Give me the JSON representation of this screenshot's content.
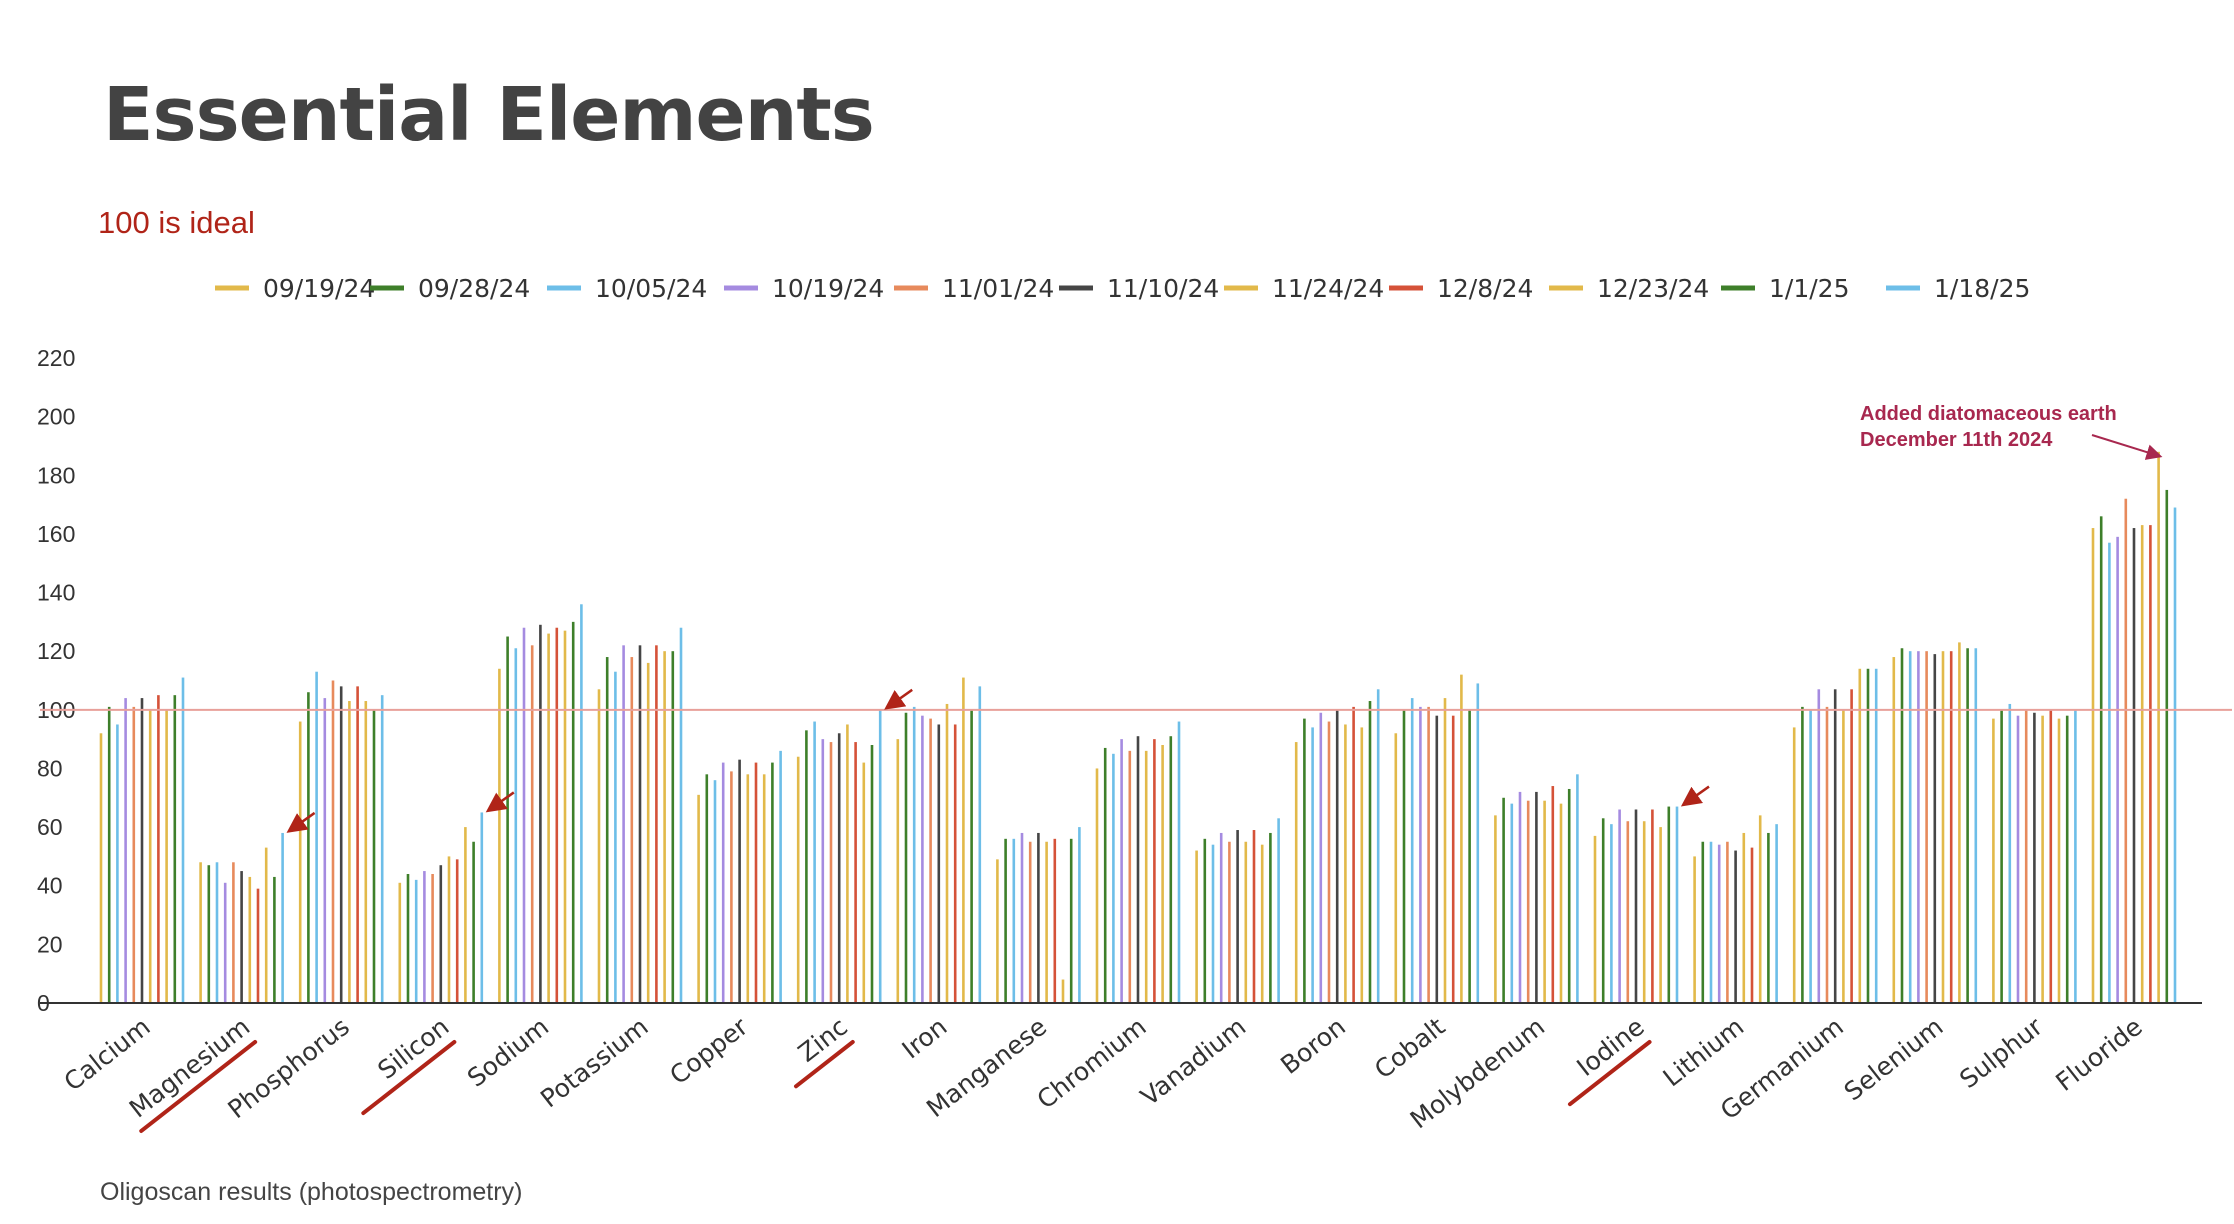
{
  "slide": {
    "title": "Essential Elements",
    "subtitle": "100 is ideal",
    "footnote": "Oligoscan results (photospectrometry)"
  },
  "chart_data": {
    "type": "bar",
    "title": "",
    "xlabel": "",
    "ylabel": "",
    "ylim": [
      0,
      220
    ],
    "yticks": [
      0,
      20,
      40,
      60,
      80,
      100,
      120,
      140,
      160,
      180,
      200,
      220
    ],
    "grid": false,
    "legend_position": "top",
    "reference_line": {
      "value": 100,
      "color": "#e8a09a"
    },
    "categories": [
      "Calcium",
      "Magnesium",
      "Phosphorus",
      "Silicon",
      "Sodium",
      "Potassium",
      "Copper",
      "Zinc",
      "Iron",
      "Manganese",
      "Chromium",
      "Vanadium",
      "Boron",
      "Cobalt",
      "Molybdenum",
      "Iodine",
      "Lithium",
      "Germanium",
      "Selenium",
      "Sulphur",
      "Fluoride"
    ],
    "struck_categories": [
      "Magnesium",
      "Silicon",
      "Zinc",
      "Iodine"
    ],
    "series": [
      {
        "name": "09/19/24",
        "color": "#e2b94a",
        "values": [
          92,
          48,
          96,
          41,
          114,
          107,
          71,
          84,
          90,
          49,
          80,
          52,
          89,
          92,
          64,
          57,
          50,
          94,
          118,
          97,
          162
        ]
      },
      {
        "name": "09/28/24",
        "color": "#3e7f2a",
        "values": [
          101,
          47,
          106,
          44,
          125,
          118,
          78,
          93,
          99,
          56,
          87,
          56,
          97,
          100,
          70,
          63,
          55,
          101,
          121,
          100,
          166
        ]
      },
      {
        "name": "10/05/24",
        "color": "#6dbee8",
        "values": [
          95,
          48,
          113,
          42,
          121,
          113,
          76,
          96,
          101,
          56,
          85,
          54,
          94,
          104,
          68,
          61,
          55,
          100,
          120,
          102,
          157
        ]
      },
      {
        "name": "10/19/24",
        "color": "#a58be0",
        "values": [
          104,
          41,
          104,
          45,
          128,
          122,
          82,
          90,
          98,
          58,
          90,
          58,
          99,
          101,
          72,
          66,
          54,
          107,
          120,
          98,
          159
        ]
      },
      {
        "name": "11/01/24",
        "color": "#e78a5c",
        "values": [
          101,
          48,
          110,
          44,
          122,
          118,
          79,
          89,
          97,
          55,
          86,
          55,
          96,
          101,
          69,
          62,
          55,
          101,
          120,
          100,
          172
        ]
      },
      {
        "name": "11/10/24",
        "color": "#454545",
        "values": [
          104,
          45,
          108,
          47,
          129,
          122,
          83,
          92,
          95,
          58,
          91,
          59,
          100,
          98,
          72,
          66,
          52,
          107,
          119,
          99,
          162
        ]
      },
      {
        "name": "11/24/24",
        "color": "#e2b94a",
        "values": [
          100,
          43,
          103,
          50,
          126,
          116,
          78,
          95,
          102,
          55,
          86,
          55,
          95,
          104,
          69,
          62,
          58,
          100,
          120,
          98,
          163
        ]
      },
      {
        "name": "12/8/24",
        "color": "#d55238",
        "values": [
          105,
          39,
          108,
          49,
          128,
          122,
          82,
          89,
          95,
          56,
          90,
          59,
          101,
          98,
          74,
          66,
          53,
          107,
          120,
          100,
          163
        ]
      },
      {
        "name": "12/23/24",
        "color": "#e2b94a",
        "values": [
          100,
          53,
          103,
          60,
          127,
          120,
          78,
          82,
          111,
          8,
          88,
          54,
          94,
          112,
          68,
          60,
          64,
          114,
          123,
          97,
          188
        ]
      },
      {
        "name": "1/1/25",
        "color": "#3e7f2a",
        "values": [
          105,
          43,
          100,
          55,
          130,
          120,
          82,
          88,
          100,
          56,
          91,
          58,
          103,
          100,
          73,
          67,
          58,
          114,
          121,
          98,
          175
        ]
      },
      {
        "name": "1/18/25",
        "color": "#6dbee8",
        "values": [
          111,
          58,
          105,
          65,
          136,
          128,
          86,
          100,
          108,
          60,
          96,
          63,
          107,
          109,
          78,
          67,
          61,
          114,
          121,
          100,
          169
        ]
      }
    ],
    "annotations": [
      {
        "text": [
          "Added diatomaceous earth",
          "December 11th 2024"
        ],
        "target_category": "Fluoride",
        "target_value": 188,
        "color": "#a8284f"
      }
    ],
    "arrow_markers": [
      {
        "category": "Magnesium",
        "value": 58,
        "color": "#b02418"
      },
      {
        "category": "Silicon",
        "value": 65,
        "color": "#b02418"
      },
      {
        "category": "Zinc",
        "value": 100,
        "color": "#b02418"
      },
      {
        "category": "Iodine",
        "value": 67,
        "color": "#b02418"
      }
    ]
  }
}
